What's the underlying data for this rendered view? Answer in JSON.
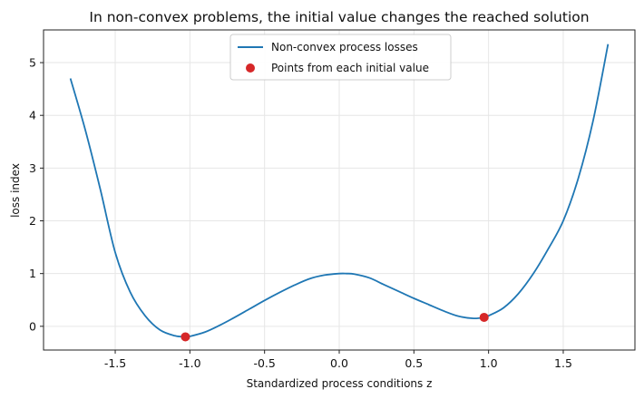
{
  "chart_data": {
    "type": "line",
    "title": "In non-convex problems, the initial value changes the reached solution",
    "xlabel": "Standardized process conditions z",
    "ylabel": "loss index",
    "xlim": [
      -1.98,
      1.98
    ],
    "ylim": [
      -0.45,
      5.62
    ],
    "xticks": [
      -1.5,
      -1.0,
      -0.5,
      0.0,
      0.5,
      1.0,
      1.5
    ],
    "xtick_labels": [
      "-1.5",
      "-1.0",
      "-0.5",
      "0.0",
      "0.5",
      "1.0",
      "1.5"
    ],
    "yticks": [
      0,
      1,
      2,
      3,
      4,
      5
    ],
    "ytick_labels": [
      "0",
      "1",
      "2",
      "3",
      "4",
      "5"
    ],
    "grid": true,
    "legend_position": "top-center",
    "series": [
      {
        "name": "Non-convex process losses",
        "kind": "line",
        "color": "#1f77b4",
        "x": [
          -1.8,
          -1.7,
          -1.6,
          -1.5,
          -1.4,
          -1.3,
          -1.2,
          -1.1,
          -1.03,
          -1.0,
          -0.9,
          -0.8,
          -0.7,
          -0.6,
          -0.5,
          -0.4,
          -0.3,
          -0.2,
          -0.1,
          0.0,
          0.05,
          0.1,
          0.2,
          0.3,
          0.4,
          0.5,
          0.6,
          0.7,
          0.8,
          0.9,
          0.97,
          1.0,
          1.1,
          1.2,
          1.3,
          1.4,
          1.5,
          1.6,
          1.7,
          1.8
        ],
        "y": [
          4.7,
          3.72,
          2.6,
          1.4,
          0.65,
          0.2,
          -0.07,
          -0.18,
          -0.2,
          -0.19,
          -0.11,
          0.02,
          0.17,
          0.33,
          0.49,
          0.64,
          0.78,
          0.9,
          0.97,
          1.0,
          1.0,
          0.99,
          0.92,
          0.79,
          0.66,
          0.53,
          0.41,
          0.29,
          0.19,
          0.15,
          0.17,
          0.2,
          0.35,
          0.62,
          1.0,
          1.47,
          2.0,
          2.8,
          3.9,
          5.35
        ]
      },
      {
        "name": "Points from each initial value",
        "kind": "scatter",
        "color": "#d62728",
        "x": [
          -1.03,
          0.97
        ],
        "y": [
          -0.2,
          0.17
        ]
      }
    ]
  }
}
